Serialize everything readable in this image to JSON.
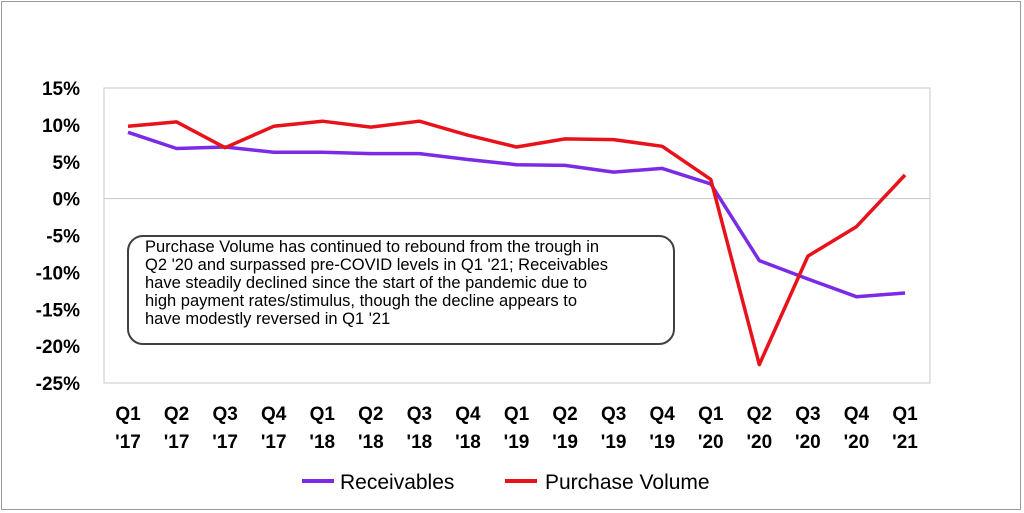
{
  "chart_data": {
    "type": "line",
    "title": "",
    "xlabel": "",
    "ylabel": "",
    "ylim": [
      -25,
      15
    ],
    "yticks": [
      "15%",
      "10%",
      "5%",
      "0%",
      "-5%",
      "-10%",
      "-15%",
      "-20%",
      "-25%"
    ],
    "ytick_values": [
      15,
      10,
      5,
      0,
      -5,
      -10,
      -15,
      -20,
      -25
    ],
    "categories": [
      [
        "Q1",
        "'17"
      ],
      [
        "Q2",
        "'17"
      ],
      [
        "Q3",
        "'17"
      ],
      [
        "Q4",
        "'17"
      ],
      [
        "Q1",
        "'18"
      ],
      [
        "Q2",
        "'18"
      ],
      [
        "Q3",
        "'18"
      ],
      [
        "Q4",
        "'18"
      ],
      [
        "Q1",
        "'19"
      ],
      [
        "Q2",
        "'19"
      ],
      [
        "Q3",
        "'19"
      ],
      [
        "Q4",
        "'19"
      ],
      [
        "Q1",
        "'20"
      ],
      [
        "Q2",
        "'20"
      ],
      [
        "Q3",
        "'20"
      ],
      [
        "Q4",
        "'20"
      ],
      [
        "Q1",
        "'21"
      ]
    ],
    "series": [
      {
        "name": "Receivables",
        "color": "#7B2BE6",
        "values": [
          9.0,
          6.8,
          7.0,
          6.3,
          6.3,
          6.1,
          6.1,
          5.3,
          4.6,
          4.5,
          3.6,
          4.1,
          2.0,
          -8.4,
          -10.9,
          -13.3,
          -12.8
        ]
      },
      {
        "name": "Purchase Volume",
        "color": "#E8121B",
        "values": [
          9.8,
          10.4,
          6.9,
          9.8,
          10.5,
          9.7,
          10.5,
          8.6,
          7.0,
          8.1,
          8.0,
          7.1,
          2.6,
          -22.5,
          -7.8,
          -3.8,
          3.2
        ]
      }
    ],
    "annotation": [
      "Purchase Volume has continued to rebound from the trough in",
      "Q2 '20 and surpassed pre-COVID levels in Q1 '21; Receivables",
      "have steadily declined since the start of the pandemic due to",
      "high payment rates/stimulus, though the decline appears to",
      "have modestly reversed in Q1 '21"
    ],
    "legend": [
      "Receivables",
      "Purchase Volume"
    ],
    "legend_position": "bottom"
  }
}
